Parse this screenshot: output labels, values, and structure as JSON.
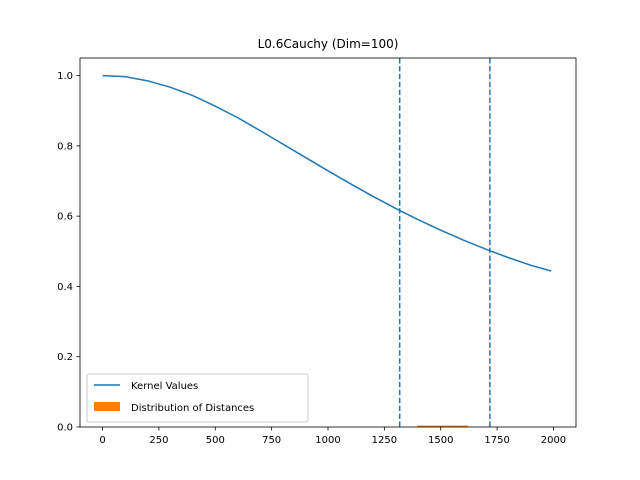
{
  "chart_data": {
    "type": "line",
    "title": "L0.6Cauchy (Dim=100)",
    "xlabel": "",
    "ylabel": "",
    "xlim": [
      -100,
      2100
    ],
    "ylim": [
      0.0,
      1.05
    ],
    "xticks": [
      0,
      250,
      500,
      750,
      1000,
      1250,
      1500,
      1750,
      2000
    ],
    "yticks": [
      0.0,
      0.2,
      0.4,
      0.6,
      0.8,
      1.0
    ],
    "xtick_labels": [
      "0",
      "250",
      "500",
      "750",
      "1000",
      "1250",
      "1500",
      "1750",
      "2000"
    ],
    "ytick_labels": [
      "0.0",
      "0.2",
      "0.4",
      "0.6",
      "0.8",
      "1.0"
    ],
    "grid": false,
    "legend_position": "lower-left",
    "series": [
      {
        "name": "Kernel Values",
        "kind": "line",
        "color": "#1f77b4",
        "x": [
          0,
          100,
          200,
          300,
          400,
          500,
          600,
          700,
          800,
          900,
          1000,
          1100,
          1200,
          1300,
          1400,
          1500,
          1600,
          1700,
          1800,
          1900,
          1990
        ],
        "y": [
          1.0,
          0.997,
          0.985,
          0.967,
          0.943,
          0.913,
          0.88,
          0.843,
          0.805,
          0.767,
          0.729,
          0.692,
          0.656,
          0.622,
          0.59,
          0.56,
          0.532,
          0.506,
          0.482,
          0.46,
          0.444
        ]
      },
      {
        "name": "Distribution of Distances",
        "kind": "histogram",
        "color": "#ff7f0e",
        "bin_edges": [
          1395,
          1440,
          1485,
          1530,
          1575,
          1620
        ],
        "counts": [
          0.004,
          0.004,
          0.004,
          0.004,
          0.004
        ]
      }
    ],
    "vlines": [
      {
        "x": 1318,
        "color": "#1f77b4",
        "style": "dashed"
      },
      {
        "x": 1718,
        "color": "#1f77b4",
        "style": "dashed"
      }
    ]
  }
}
